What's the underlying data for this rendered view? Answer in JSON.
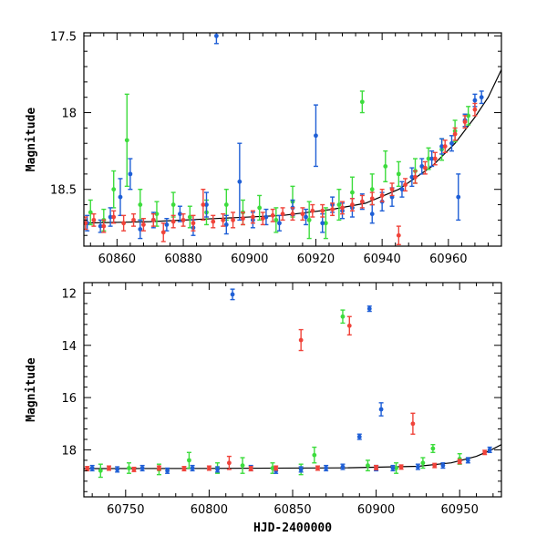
{
  "chart_data": [
    {
      "type": "scatter",
      "panel": "top",
      "title": "",
      "xlabel": "",
      "ylabel": "Magnitude",
      "xlim": [
        60850,
        60976
      ],
      "ylim": [
        18.87,
        17.48
      ],
      "y_inverted": true,
      "grid": false,
      "xticks": [
        60860,
        60880,
        60900,
        60920,
        60940,
        60960
      ],
      "yticks": [
        17.5,
        18,
        18.5
      ],
      "xtick_labels": [
        "60860",
        "60880",
        "60900",
        "60920",
        "60940",
        "60960"
      ],
      "ytick_labels": [
        "17.5",
        "18",
        "18.5"
      ],
      "series": [
        {
          "name": "blue",
          "color": "#1f5fd6",
          "points": [
            {
              "x": 60851,
              "y": 18.72,
              "err": 0.05
            },
            {
              "x": 60855,
              "y": 18.74,
              "err": 0.04
            },
            {
              "x": 60858,
              "y": 18.68,
              "err": 0.06
            },
            {
              "x": 60861,
              "y": 18.55,
              "err": 0.12
            },
            {
              "x": 60864,
              "y": 18.4,
              "err": 0.1
            },
            {
              "x": 60867,
              "y": 18.76,
              "err": 0.06
            },
            {
              "x": 60871,
              "y": 18.7,
              "err": 0.05
            },
            {
              "x": 60875,
              "y": 18.73,
              "err": 0.04
            },
            {
              "x": 60879,
              "y": 18.66,
              "err": 0.05
            },
            {
              "x": 60883,
              "y": 18.75,
              "err": 0.05
            },
            {
              "x": 60887,
              "y": 18.6,
              "err": 0.08
            },
            {
              "x": 60890,
              "y": 17.5,
              "err": 0.05
            },
            {
              "x": 60893,
              "y": 18.73,
              "err": 0.06
            },
            {
              "x": 60897,
              "y": 18.45,
              "err": 0.25
            },
            {
              "x": 60901,
              "y": 18.7,
              "err": 0.05
            },
            {
              "x": 60905,
              "y": 18.68,
              "err": 0.05
            },
            {
              "x": 60909,
              "y": 18.72,
              "err": 0.05
            },
            {
              "x": 60913,
              "y": 18.62,
              "err": 0.05
            },
            {
              "x": 60917,
              "y": 18.68,
              "err": 0.05
            },
            {
              "x": 60920,
              "y": 18.15,
              "err": 0.2
            },
            {
              "x": 60922,
              "y": 18.72,
              "err": 0.06
            },
            {
              "x": 60925,
              "y": 18.6,
              "err": 0.05
            },
            {
              "x": 60928,
              "y": 18.64,
              "err": 0.05
            },
            {
              "x": 60931,
              "y": 18.62,
              "err": 0.06
            },
            {
              "x": 60934,
              "y": 18.58,
              "err": 0.05
            },
            {
              "x": 60937,
              "y": 18.66,
              "err": 0.06
            },
            {
              "x": 60940,
              "y": 18.58,
              "err": 0.06
            },
            {
              "x": 60943,
              "y": 18.55,
              "err": 0.06
            },
            {
              "x": 60946,
              "y": 18.5,
              "err": 0.05
            },
            {
              "x": 60949,
              "y": 18.42,
              "err": 0.06
            },
            {
              "x": 60952,
              "y": 18.35,
              "err": 0.05
            },
            {
              "x": 60955,
              "y": 18.3,
              "err": 0.05
            },
            {
              "x": 60958,
              "y": 18.22,
              "err": 0.05
            },
            {
              "x": 60961,
              "y": 18.2,
              "err": 0.05
            },
            {
              "x": 60963,
              "y": 18.55,
              "err": 0.15
            },
            {
              "x": 60965,
              "y": 18.05,
              "err": 0.04
            },
            {
              "x": 60968,
              "y": 17.92,
              "err": 0.04
            },
            {
              "x": 60970,
              "y": 17.9,
              "err": 0.04
            }
          ]
        },
        {
          "name": "green",
          "color": "#3ddc3d",
          "points": [
            {
              "x": 60852,
              "y": 18.65,
              "err": 0.08
            },
            {
              "x": 60856,
              "y": 18.7,
              "err": 0.07
            },
            {
              "x": 60859,
              "y": 18.5,
              "err": 0.12
            },
            {
              "x": 60863,
              "y": 18.18,
              "err": 0.3
            },
            {
              "x": 60867,
              "y": 18.6,
              "err": 0.1
            },
            {
              "x": 60872,
              "y": 18.66,
              "err": 0.08
            },
            {
              "x": 60877,
              "y": 18.6,
              "err": 0.08
            },
            {
              "x": 60882,
              "y": 18.68,
              "err": 0.07
            },
            {
              "x": 60887,
              "y": 18.65,
              "err": 0.08
            },
            {
              "x": 60893,
              "y": 18.6,
              "err": 0.1
            },
            {
              "x": 60898,
              "y": 18.65,
              "err": 0.08
            },
            {
              "x": 60903,
              "y": 18.62,
              "err": 0.08
            },
            {
              "x": 60908,
              "y": 18.7,
              "err": 0.08
            },
            {
              "x": 60913,
              "y": 18.58,
              "err": 0.1
            },
            {
              "x": 60918,
              "y": 18.7,
              "err": 0.12
            },
            {
              "x": 60923,
              "y": 18.72,
              "err": 0.1
            },
            {
              "x": 60927,
              "y": 18.6,
              "err": 0.1
            },
            {
              "x": 60931,
              "y": 18.52,
              "err": 0.1
            },
            {
              "x": 60934,
              "y": 17.93,
              "err": 0.07
            },
            {
              "x": 60937,
              "y": 18.5,
              "err": 0.1
            },
            {
              "x": 60941,
              "y": 18.35,
              "err": 0.1
            },
            {
              "x": 60945,
              "y": 18.4,
              "err": 0.08
            },
            {
              "x": 60950,
              "y": 18.38,
              "err": 0.08
            },
            {
              "x": 60954,
              "y": 18.3,
              "err": 0.07
            },
            {
              "x": 60958,
              "y": 18.24,
              "err": 0.07
            },
            {
              "x": 60962,
              "y": 18.12,
              "err": 0.07
            },
            {
              "x": 60966,
              "y": 18.02,
              "err": 0.06
            }
          ]
        },
        {
          "name": "red",
          "color": "#f0433a",
          "points": [
            {
              "x": 60850.5,
              "y": 18.72,
              "err": 0.04
            },
            {
              "x": 60853,
              "y": 18.7,
              "err": 0.04
            },
            {
              "x": 60856,
              "y": 18.74,
              "err": 0.04
            },
            {
              "x": 60859,
              "y": 18.68,
              "err": 0.04
            },
            {
              "x": 60862,
              "y": 18.72,
              "err": 0.05
            },
            {
              "x": 60865,
              "y": 18.7,
              "err": 0.04
            },
            {
              "x": 60868,
              "y": 18.73,
              "err": 0.04
            },
            {
              "x": 60871,
              "y": 18.7,
              "err": 0.04
            },
            {
              "x": 60874,
              "y": 18.78,
              "err": 0.06
            },
            {
              "x": 60877,
              "y": 18.71,
              "err": 0.04
            },
            {
              "x": 60880,
              "y": 18.7,
              "err": 0.04
            },
            {
              "x": 60883,
              "y": 18.72,
              "err": 0.05
            },
            {
              "x": 60886,
              "y": 18.6,
              "err": 0.1
            },
            {
              "x": 60889,
              "y": 18.71,
              "err": 0.04
            },
            {
              "x": 60892,
              "y": 18.7,
              "err": 0.04
            },
            {
              "x": 60895,
              "y": 18.7,
              "err": 0.05
            },
            {
              "x": 60898,
              "y": 18.69,
              "err": 0.04
            },
            {
              "x": 60901,
              "y": 18.68,
              "err": 0.04
            },
            {
              "x": 60904,
              "y": 18.69,
              "err": 0.04
            },
            {
              "x": 60907,
              "y": 18.67,
              "err": 0.04
            },
            {
              "x": 60910,
              "y": 18.66,
              "err": 0.04
            },
            {
              "x": 60913,
              "y": 18.66,
              "err": 0.04
            },
            {
              "x": 60916,
              "y": 18.66,
              "err": 0.04
            },
            {
              "x": 60919,
              "y": 18.64,
              "err": 0.04
            },
            {
              "x": 60922,
              "y": 18.64,
              "err": 0.04
            },
            {
              "x": 60925,
              "y": 18.63,
              "err": 0.04
            },
            {
              "x": 60928,
              "y": 18.62,
              "err": 0.04
            },
            {
              "x": 60931,
              "y": 18.6,
              "err": 0.04
            },
            {
              "x": 60934,
              "y": 18.58,
              "err": 0.04
            },
            {
              "x": 60937,
              "y": 18.56,
              "err": 0.04
            },
            {
              "x": 60940,
              "y": 18.54,
              "err": 0.04
            },
            {
              "x": 60943,
              "y": 18.5,
              "err": 0.04
            },
            {
              "x": 60945,
              "y": 18.8,
              "err": 0.06
            },
            {
              "x": 60947,
              "y": 18.47,
              "err": 0.04
            },
            {
              "x": 60950,
              "y": 18.42,
              "err": 0.04
            },
            {
              "x": 60953,
              "y": 18.36,
              "err": 0.04
            },
            {
              "x": 60956,
              "y": 18.3,
              "err": 0.04
            },
            {
              "x": 60959,
              "y": 18.22,
              "err": 0.04
            },
            {
              "x": 60962,
              "y": 18.14,
              "err": 0.04
            },
            {
              "x": 60965,
              "y": 18.06,
              "err": 0.04
            },
            {
              "x": 60968,
              "y": 17.98,
              "err": 0.04
            }
          ]
        }
      ],
      "model_curve": {
        "color": "#000000",
        "x": [
          60850,
          60870,
          60890,
          60910,
          60925,
          60935,
          60945,
          60955,
          60962,
          60968,
          60972,
          60976
        ],
        "y": [
          18.72,
          18.71,
          18.69,
          18.67,
          18.63,
          18.59,
          18.5,
          18.35,
          18.2,
          18.03,
          17.9,
          17.72
        ]
      }
    },
    {
      "type": "scatter",
      "panel": "bottom",
      "title": "",
      "xlabel": "HJD-2400000",
      "ylabel": "Magnitude",
      "xlim": [
        60725,
        60975
      ],
      "ylim": [
        19.8,
        11.6
      ],
      "y_inverted": true,
      "grid": false,
      "xticks": [
        60750,
        60800,
        60850,
        60900,
        60950
      ],
      "yticks": [
        12,
        14,
        16,
        18
      ],
      "xtick_labels": [
        "60750",
        "60800",
        "60850",
        "60900",
        "60950"
      ],
      "ytick_labels": [
        "12",
        "14",
        "16",
        "18"
      ],
      "series": [
        {
          "name": "blue",
          "color": "#1f5fd6",
          "points": [
            {
              "x": 60730,
              "y": 18.7,
              "err": 0.1
            },
            {
              "x": 60745,
              "y": 18.75,
              "err": 0.1
            },
            {
              "x": 60760,
              "y": 18.7,
              "err": 0.1
            },
            {
              "x": 60775,
              "y": 18.8,
              "err": 0.1
            },
            {
              "x": 60790,
              "y": 18.7,
              "err": 0.1
            },
            {
              "x": 60805,
              "y": 18.75,
              "err": 0.1
            },
            {
              "x": 60814,
              "y": 12.05,
              "err": 0.2
            },
            {
              "x": 60825,
              "y": 18.7,
              "err": 0.1
            },
            {
              "x": 60840,
              "y": 18.8,
              "err": 0.1
            },
            {
              "x": 60855,
              "y": 18.75,
              "err": 0.1
            },
            {
              "x": 60870,
              "y": 18.7,
              "err": 0.1
            },
            {
              "x": 60880,
              "y": 18.65,
              "err": 0.1
            },
            {
              "x": 60890,
              "y": 17.5,
              "err": 0.1
            },
            {
              "x": 60896,
              "y": 12.6,
              "err": 0.1
            },
            {
              "x": 60900,
              "y": 18.7,
              "err": 0.1
            },
            {
              "x": 60903,
              "y": 16.45,
              "err": 0.25
            },
            {
              "x": 60910,
              "y": 18.7,
              "err": 0.1
            },
            {
              "x": 60925,
              "y": 18.65,
              "err": 0.1
            },
            {
              "x": 60940,
              "y": 18.6,
              "err": 0.1
            },
            {
              "x": 60955,
              "y": 18.4,
              "err": 0.1
            },
            {
              "x": 60968,
              "y": 18.0,
              "err": 0.1
            }
          ]
        },
        {
          "name": "green",
          "color": "#3ddc3d",
          "points": [
            {
              "x": 60735,
              "y": 18.8,
              "err": 0.25
            },
            {
              "x": 60752,
              "y": 18.7,
              "err": 0.2
            },
            {
              "x": 60770,
              "y": 18.75,
              "err": 0.2
            },
            {
              "x": 60788,
              "y": 18.4,
              "err": 0.3
            },
            {
              "x": 60805,
              "y": 18.7,
              "err": 0.2
            },
            {
              "x": 60820,
              "y": 18.6,
              "err": 0.3
            },
            {
              "x": 60838,
              "y": 18.7,
              "err": 0.2
            },
            {
              "x": 60855,
              "y": 18.75,
              "err": 0.2
            },
            {
              "x": 60863,
              "y": 18.2,
              "err": 0.3
            },
            {
              "x": 60880,
              "y": 12.9,
              "err": 0.25
            },
            {
              "x": 60895,
              "y": 18.6,
              "err": 0.2
            },
            {
              "x": 60912,
              "y": 18.7,
              "err": 0.2
            },
            {
              "x": 60928,
              "y": 18.5,
              "err": 0.2
            },
            {
              "x": 60934,
              "y": 17.95,
              "err": 0.15
            },
            {
              "x": 60950,
              "y": 18.35,
              "err": 0.2
            }
          ]
        },
        {
          "name": "red",
          "color": "#f0433a",
          "points": [
            {
              "x": 60727,
              "y": 18.72,
              "err": 0.08
            },
            {
              "x": 60740,
              "y": 18.7,
              "err": 0.08
            },
            {
              "x": 60755,
              "y": 18.75,
              "err": 0.08
            },
            {
              "x": 60770,
              "y": 18.7,
              "err": 0.08
            },
            {
              "x": 60785,
              "y": 18.72,
              "err": 0.08
            },
            {
              "x": 60800,
              "y": 18.7,
              "err": 0.08
            },
            {
              "x": 60812,
              "y": 18.5,
              "err": 0.25
            },
            {
              "x": 60825,
              "y": 18.72,
              "err": 0.08
            },
            {
              "x": 60840,
              "y": 18.7,
              "err": 0.08
            },
            {
              "x": 60855,
              "y": 13.8,
              "err": 0.4
            },
            {
              "x": 60865,
              "y": 18.7,
              "err": 0.08
            },
            {
              "x": 60884,
              "y": 13.25,
              "err": 0.35
            },
            {
              "x": 60900,
              "y": 18.68,
              "err": 0.08
            },
            {
              "x": 60915,
              "y": 18.66,
              "err": 0.08
            },
            {
              "x": 60922,
              "y": 17.0,
              "err": 0.4
            },
            {
              "x": 60935,
              "y": 18.6,
              "err": 0.08
            },
            {
              "x": 60950,
              "y": 18.45,
              "err": 0.08
            },
            {
              "x": 60965,
              "y": 18.1,
              "err": 0.08
            }
          ]
        }
      ],
      "model_curve": {
        "color": "#000000",
        "x": [
          60725,
          60800,
          60880,
          60925,
          60945,
          60960,
          60968,
          60975
        ],
        "y": [
          18.72,
          18.71,
          18.69,
          18.63,
          18.5,
          18.25,
          18.03,
          17.8
        ]
      }
    }
  ]
}
